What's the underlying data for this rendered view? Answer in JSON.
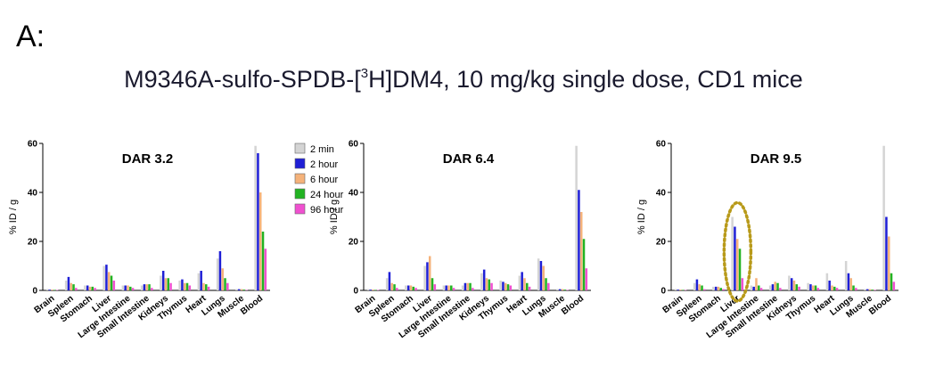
{
  "header": {
    "panel_label": "A:",
    "title_before": "M9346A-sulfo-SPDB-[",
    "title_sup": "3",
    "title_after": "H]DM4, 10 mg/kg single dose, CD1 mice"
  },
  "colors": {
    "2 min": "#d4d4d4",
    "2 hour": "#1f1fd6",
    "6 hour": "#f5b27a",
    "24 hour": "#22b322",
    "96 hour": "#f050d0",
    "highlight": "#b89a1a"
  },
  "chart_data": [
    {
      "type": "bar",
      "title": "DAR 3.2",
      "ylabel": "% ID / g",
      "ylim": [
        0,
        60
      ],
      "yticks": [
        0,
        20,
        40,
        60
      ],
      "categories": [
        "Brain",
        "Spleen",
        "Stomach",
        "Liver",
        "Large Intestine",
        "Small Intestine",
        "Kidneys",
        "Thymus",
        "Heart",
        "Lungs",
        "Muscle",
        "Blood"
      ],
      "legend": {
        "placement": "top-right",
        "entries": [
          "2 min",
          "2 hour",
          "6 hour",
          "24 hour",
          "96 hour"
        ]
      },
      "series": [
        {
          "name": "2 min",
          "values": [
            0.5,
            4,
            2,
            10,
            2,
            2,
            6,
            4,
            7,
            13,
            0.5,
            59
          ]
        },
        {
          "name": "2 hour",
          "values": [
            0.3,
            5.5,
            2,
            10.5,
            2,
            2.5,
            8,
            4.5,
            8,
            16,
            0.5,
            56
          ]
        },
        {
          "name": "6 hour",
          "values": [
            0.3,
            3,
            1.5,
            7.5,
            2,
            2.5,
            5,
            3,
            3,
            9,
            0.5,
            40
          ]
        },
        {
          "name": "24 hour",
          "values": [
            0.2,
            2.5,
            1.5,
            6,
            1.5,
            2.5,
            5,
            3,
            2.5,
            5,
            0.3,
            24
          ]
        },
        {
          "name": "96 hour",
          "values": [
            0.1,
            1,
            1,
            4,
            1,
            1,
            3,
            2,
            1.5,
            3,
            0.2,
            17
          ]
        }
      ]
    },
    {
      "type": "bar",
      "title": "DAR 6.4",
      "ylabel": "% ID / g",
      "ylim": [
        0,
        60
      ],
      "yticks": [
        0,
        20,
        40,
        60
      ],
      "categories": [
        "Brain",
        "Spleen",
        "Stomach",
        "Liver",
        "Large Intestine",
        "Small Intestine",
        "Kidneys",
        "Thymus",
        "Heart",
        "Lungs",
        "Muscle",
        "Blood"
      ],
      "series": [
        {
          "name": "2 min",
          "values": [
            0.5,
            5,
            2,
            10,
            2,
            2,
            7,
            4,
            6,
            13,
            0.5,
            59
          ]
        },
        {
          "name": "2 hour",
          "values": [
            0.3,
            7.5,
            2,
            11.5,
            2,
            3,
            8.5,
            3.5,
            7.5,
            12,
            0.5,
            41
          ]
        },
        {
          "name": "6 hour",
          "values": [
            0.3,
            3,
            2,
            14,
            2,
            3,
            5,
            3,
            5,
            10,
            0.5,
            32
          ]
        },
        {
          "name": "24 hour",
          "values": [
            0.2,
            2.5,
            1.5,
            5,
            2,
            3,
            4.5,
            2.5,
            3,
            5,
            0.3,
            21
          ]
        },
        {
          "name": "96 hour",
          "values": [
            0.1,
            1,
            1,
            2.5,
            1,
            1,
            3,
            2,
            1.5,
            3,
            0.2,
            9
          ]
        }
      ]
    },
    {
      "type": "bar",
      "title": "DAR 9.5",
      "ylabel": "% ID / g",
      "ylim": [
        0,
        60
      ],
      "yticks": [
        0,
        20,
        40,
        60
      ],
      "categories": [
        "Brain",
        "Spleen",
        "Stomach",
        "Liver",
        "Large Intestine",
        "Small Intestine",
        "Kidneys",
        "Thymus",
        "Heart",
        "Lungs",
        "Muscle",
        "Blood"
      ],
      "highlight_category": "Liver",
      "series": [
        {
          "name": "2 min",
          "values": [
            0.5,
            3,
            1.5,
            30,
            2,
            2,
            6,
            3,
            7,
            12,
            0.5,
            59
          ]
        },
        {
          "name": "2 hour",
          "values": [
            0.3,
            4.5,
            1.5,
            26,
            1.5,
            2.5,
            5,
            2.5,
            4,
            7,
            0.5,
            30
          ]
        },
        {
          "name": "6 hour",
          "values": [
            0.3,
            2.5,
            1.5,
            21,
            5,
            3.5,
            4,
            2,
            2,
            5,
            0.5,
            22
          ]
        },
        {
          "name": "24 hour",
          "values": [
            0.2,
            2,
            1,
            17,
            2,
            3,
            2.5,
            2,
            1.5,
            2,
            0.3,
            7
          ]
        },
        {
          "name": "96 hour",
          "values": [
            0.1,
            0.5,
            0.5,
            5,
            1,
            1,
            1.5,
            1,
            1,
            1,
            0.2,
            3.5
          ]
        }
      ]
    }
  ]
}
